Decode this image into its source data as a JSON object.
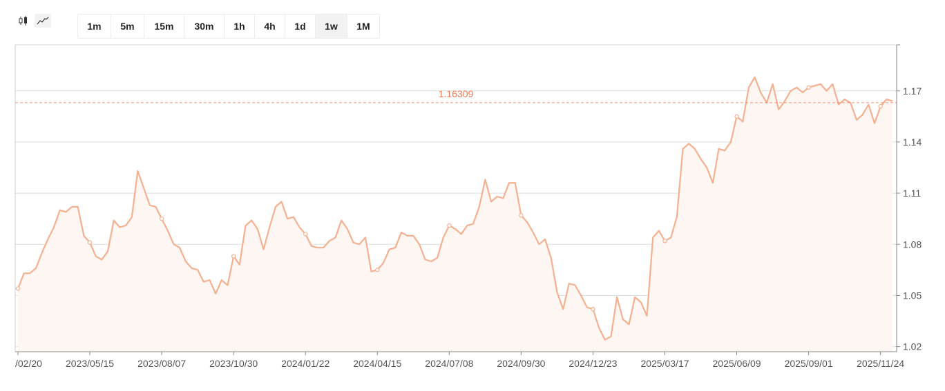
{
  "chart_type_toggle": {
    "items": [
      {
        "name": "candlestick-icon",
        "active": false
      },
      {
        "name": "line-chart-icon",
        "active": true
      }
    ]
  },
  "intervals": {
    "items": [
      "1m",
      "5m",
      "15m",
      "30m",
      "1h",
      "4h",
      "1d",
      "1w",
      "1M"
    ],
    "selected": "1w"
  },
  "chart_data": {
    "type": "area",
    "x_tick_labels": [
      "/02/20",
      "2023/05/15",
      "2023/08/07",
      "2023/10/30",
      "2024/01/22",
      "2024/04/15",
      "2024/07/08",
      "2024/09/30",
      "2024/12/23",
      "2025/03/17",
      "2025/06/09",
      "2025/09/01",
      "2025/11/24"
    ],
    "y_tick_labels": [
      "1.02",
      "1.05",
      "1.08",
      "1.11",
      "1.14",
      "1.17"
    ],
    "ylim": [
      1.017,
      1.197
    ],
    "current_value_label": "1.16309",
    "current_value": 1.16309,
    "grid": true,
    "line_color": "#f5b08f",
    "fill_color": "#fdf6f2",
    "current_value_color": "#f07a52",
    "values": [
      1.054,
      1.063,
      1.063,
      1.066,
      1.075,
      1.083,
      1.09,
      1.1,
      1.099,
      1.102,
      1.102,
      1.085,
      1.081,
      1.073,
      1.071,
      1.076,
      1.094,
      1.09,
      1.091,
      1.096,
      1.123,
      1.113,
      1.103,
      1.102,
      1.095,
      1.088,
      1.08,
      1.078,
      1.07,
      1.066,
      1.065,
      1.058,
      1.059,
      1.051,
      1.059,
      1.056,
      1.073,
      1.068,
      1.091,
      1.094,
      1.089,
      1.077,
      1.09,
      1.102,
      1.105,
      1.095,
      1.096,
      1.09,
      1.086,
      1.079,
      1.078,
      1.078,
      1.082,
      1.084,
      1.094,
      1.089,
      1.081,
      1.08,
      1.084,
      1.064,
      1.065,
      1.069,
      1.077,
      1.078,
      1.087,
      1.085,
      1.085,
      1.08,
      1.071,
      1.07,
      1.072,
      1.084,
      1.091,
      1.089,
      1.086,
      1.091,
      1.092,
      1.102,
      1.118,
      1.105,
      1.108,
      1.107,
      1.116,
      1.116,
      1.097,
      1.093,
      1.087,
      1.08,
      1.083,
      1.072,
      1.052,
      1.042,
      1.057,
      1.056,
      1.05,
      1.043,
      1.042,
      1.031,
      1.024,
      1.026,
      1.049,
      1.036,
      1.033,
      1.049,
      1.046,
      1.038,
      1.084,
      1.088,
      1.082,
      1.084,
      1.096,
      1.136,
      1.139,
      1.136,
      1.13,
      1.125,
      1.116,
      1.136,
      1.135,
      1.14,
      1.155,
      1.152,
      1.172,
      1.178,
      1.169,
      1.163,
      1.174,
      1.159,
      1.164,
      1.17,
      1.172,
      1.169,
      1.172,
      1.173,
      1.174,
      1.17,
      1.174,
      1.162,
      1.165,
      1.163,
      1.153,
      1.156,
      1.162,
      1.151,
      1.161,
      1.165,
      1.164
    ],
    "marker_indices": [
      0,
      12,
      24,
      36,
      48,
      60,
      72,
      84,
      96,
      108,
      120,
      132,
      144
    ]
  }
}
